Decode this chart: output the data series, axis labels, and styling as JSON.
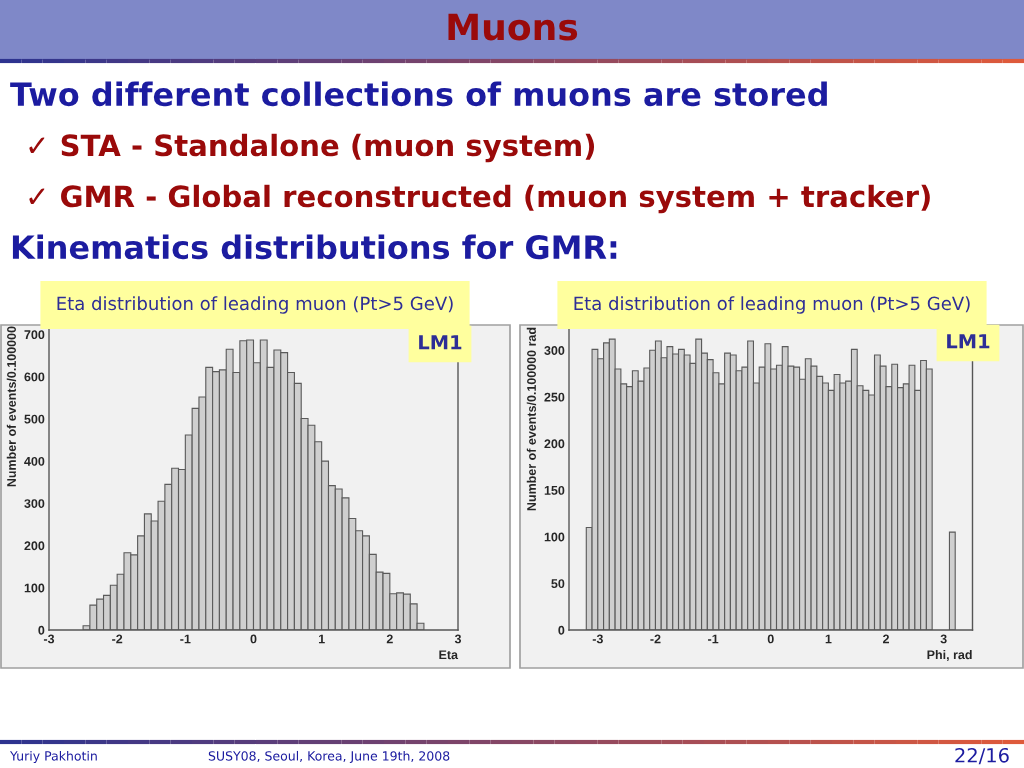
{
  "chart_data": [
    {
      "type": "other",
      "title": "Muons",
      "annotations": [
        "Two different collections of muons are stored",
        "✓ STA - Standalone (muon system)",
        "✓ GMR - Global reconstructed (muon system + tracker)",
        "Kinematics distributions for GMR:"
      ]
    },
    {
      "type": "histogram",
      "title": "Eta distribution of leading muon (Pt>5 GeV)",
      "xlabel": "Eta",
      "ylabel": "Number of events/0.100000",
      "color": "#cfcfcf",
      "bins": [
        -2.5,
        -2.4,
        -2.3,
        -2.2,
        -2.1,
        -2.0,
        -1.9,
        -1.8,
        -1.7,
        -1.6,
        -1.5,
        -1.4,
        -1.3,
        -1.2,
        -1.1,
        -1.0,
        -0.9,
        -0.8,
        -0.7,
        -0.6,
        -0.5,
        -0.4,
        -0.3,
        -0.2,
        -0.1,
        0.0,
        0.1,
        0.2,
        0.3,
        0.4,
        0.5,
        0.6,
        0.7,
        0.8,
        0.9,
        1.0,
        1.1,
        1.2,
        1.3,
        1.4,
        1.5,
        1.6,
        1.7,
        1.8,
        1.9,
        2.0,
        2.1,
        2.2,
        2.3,
        2.4,
        2.5
      ],
      "values": [
        10,
        59,
        73,
        82,
        106,
        132,
        183,
        178,
        223,
        275,
        258,
        305,
        345,
        383,
        380,
        462,
        525,
        552,
        622,
        612,
        616,
        665,
        610,
        685,
        687,
        633,
        687,
        622,
        663,
        657,
        610,
        584,
        501,
        485,
        446,
        400,
        342,
        334,
        313,
        264,
        235,
        223,
        179,
        137,
        134,
        86,
        88,
        85,
        62,
        16
      ],
      "xlim": [
        -3,
        3
      ],
      "xticks": [
        -3,
        -2,
        -1,
        0,
        1,
        2,
        3
      ],
      "ylim": [
        0,
        720
      ],
      "yticks": [
        0,
        100,
        200,
        300,
        400,
        500,
        600,
        700
      ],
      "annotations": [
        "LM1"
      ]
    },
    {
      "type": "histogram",
      "title": "Eta distribution of leading muon (Pt>5 GeV)",
      "xlabel": "Phi, rad",
      "ylabel": "Number of events/0.100000 rad",
      "color": "#cfcfcf",
      "bins": [
        -3.2,
        -3.1,
        -3.0,
        -2.9,
        -2.8,
        -2.7,
        -2.6,
        -2.5,
        -2.4,
        -2.3,
        -2.2,
        -2.1,
        -2.0,
        -1.9,
        -1.8,
        -1.7,
        -1.6,
        -1.5,
        -1.4,
        -1.3,
        -1.2,
        -1.1,
        -1.0,
        -0.9,
        -0.8,
        -0.7,
        -0.6,
        -0.5,
        -0.4,
        -0.3,
        -0.2,
        -0.1,
        0.0,
        0.1,
        0.2,
        0.3,
        0.4,
        0.5,
        0.6,
        0.7,
        0.8,
        0.9,
        1.0,
        1.1,
        1.2,
        1.3,
        1.4,
        1.5,
        1.6,
        1.7,
        1.8,
        1.9,
        2.0,
        2.1,
        2.2,
        2.3,
        2.4,
        2.5,
        2.6,
        2.7,
        2.8,
        2.9,
        3.0,
        3.1,
        3.2
      ],
      "values": [
        110,
        301,
        291,
        308,
        312,
        280,
        264,
        261,
        278,
        267,
        281,
        300,
        310,
        292,
        304,
        296,
        301,
        295,
        286,
        312,
        297,
        290,
        276,
        264,
        297,
        295,
        278,
        282,
        310,
        265,
        282,
        307,
        280,
        284,
        304,
        283,
        282,
        269,
        291,
        283,
        272,
        265,
        257,
        274,
        265,
        267,
        301,
        262,
        257,
        252,
        295,
        283,
        261,
        285,
        260,
        264,
        284,
        257,
        289,
        280,
        null,
        null,
        null,
        105
      ],
      "xlim": [
        -3.5,
        3.5
      ],
      "xticks": [
        -3,
        -2,
        -1,
        0,
        1,
        2,
        3
      ],
      "ylim": [
        0,
        325
      ],
      "yticks": [
        0,
        50,
        100,
        150,
        200,
        250,
        300
      ],
      "annotations": [
        "LM1"
      ]
    },
    {
      "type": "other",
      "annotations": [
        "Yuriy Pakhotin",
        "SUSY08, Seoul, Korea, June 19th, 2008",
        "22/16"
      ]
    }
  ]
}
